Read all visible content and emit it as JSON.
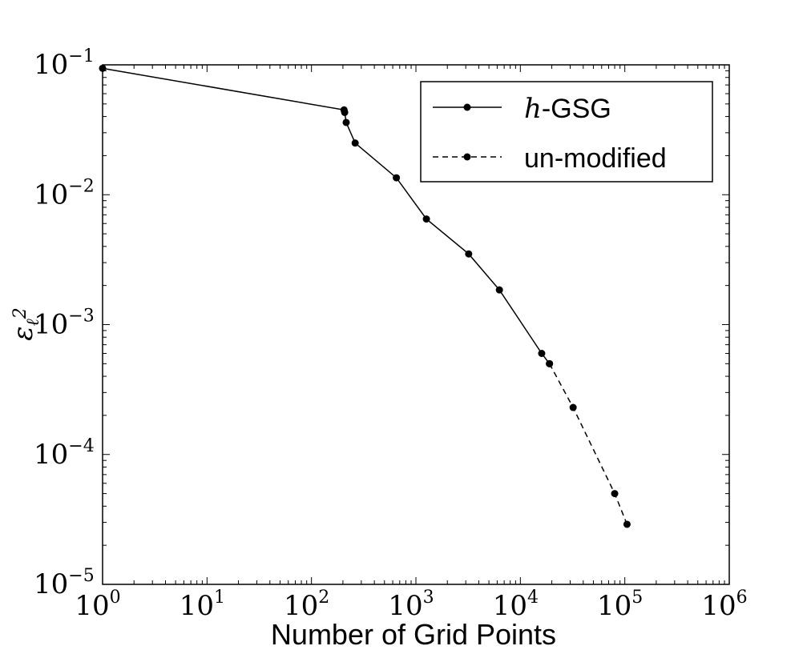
{
  "chart_data": {
    "type": "line",
    "xlabel": "Number of Grid Points",
    "ylabel": {
      "base": "ε",
      "sub": "ℓ",
      "sup": "2"
    },
    "xscale": "log",
    "yscale": "log",
    "xlim": [
      1,
      1000000
    ],
    "ylim": [
      1e-05,
      0.1
    ],
    "xticks": [
      {
        "base": "10",
        "exp": "0"
      },
      {
        "base": "10",
        "exp": "1"
      },
      {
        "base": "10",
        "exp": "2"
      },
      {
        "base": "10",
        "exp": "3"
      },
      {
        "base": "10",
        "exp": "4"
      },
      {
        "base": "10",
        "exp": "5"
      },
      {
        "base": "10",
        "exp": "6"
      }
    ],
    "yticks": [
      {
        "base": "10",
        "exp": "−1"
      },
      {
        "base": "10",
        "exp": "−2"
      },
      {
        "base": "10",
        "exp": "−3"
      },
      {
        "base": "10",
        "exp": "−4"
      },
      {
        "base": "10",
        "exp": "−5"
      }
    ],
    "grid": false,
    "legend": {
      "position": "top-right"
    },
    "series": [
      {
        "name": {
          "italic": "h",
          "rest": "-GSG"
        },
        "style": "solid",
        "x": [
          1,
          205,
          208,
          215,
          262,
          650,
          1260,
          3200,
          6300,
          16000,
          19000
        ],
        "y": [
          0.094,
          0.045,
          0.043,
          0.036,
          0.025,
          0.0135,
          0.0065,
          0.0035,
          0.00185,
          0.0006,
          0.0005
        ]
      },
      {
        "name": "un-modified",
        "style": "dashed",
        "x": [
          19000,
          32000,
          80000,
          105000
        ],
        "y": [
          0.0005,
          0.00023,
          5e-05,
          2.9e-05
        ]
      }
    ],
    "color": "#000000"
  }
}
